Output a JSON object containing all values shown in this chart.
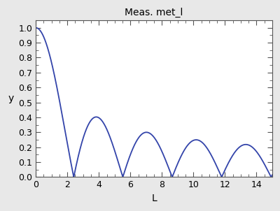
{
  "title": "Meas. met_l",
  "xlabel": "L",
  "ylabel": "y",
  "xlim": [
    0,
    15
  ],
  "ylim": [
    0.0,
    1.05
  ],
  "xticks": [
    0,
    2,
    4,
    6,
    8,
    10,
    12,
    14
  ],
  "yticks": [
    0.0,
    0.1,
    0.2,
    0.3,
    0.4,
    0.5,
    0.6,
    0.7,
    0.8,
    0.9,
    1.0
  ],
  "line_color": "#3344aa",
  "line_width": 1.3,
  "bg_color": "#e8e8e8",
  "plot_bg_color": "#ffffff",
  "title_fontsize": 10,
  "axis_fontsize": 10,
  "tick_fontsize": 9,
  "minor_tick_count": 1
}
